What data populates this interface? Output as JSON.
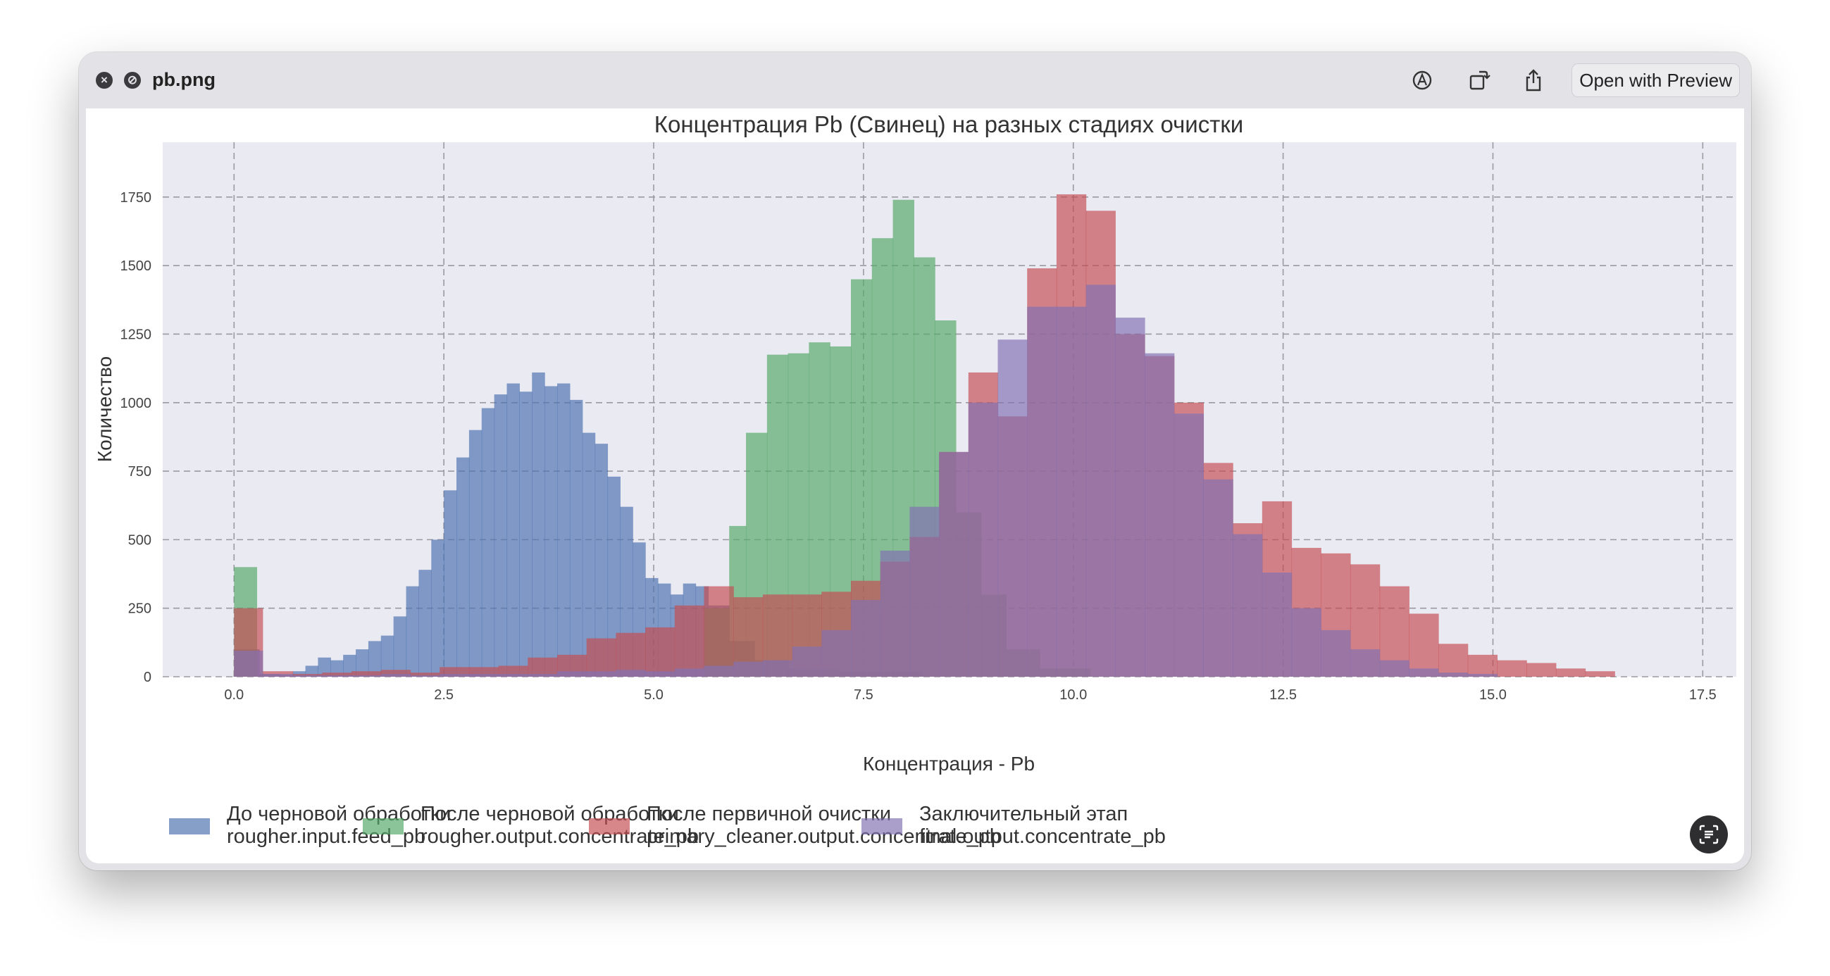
{
  "window": {
    "title": "pb.png",
    "open_button": "Open with Preview",
    "icons": [
      "close-icon",
      "stop-icon",
      "markup-icon",
      "rotate-icon",
      "share-icon",
      "live-text-icon"
    ]
  },
  "chart_data": {
    "type": "histogram",
    "title": "Концентрация Pb (Свинец) на разных стадиях очистки",
    "xlabel": "Концентрация - Pb",
    "ylabel": "Количество",
    "xlim": [
      -0.85,
      17.9
    ],
    "ylim": [
      0,
      1950
    ],
    "xticks": [
      "0.0",
      "2.5",
      "5.0",
      "7.5",
      "10.0",
      "12.5",
      "15.0",
      "17.5"
    ],
    "yticks": [
      "0",
      "250",
      "500",
      "750",
      "1000",
      "1250",
      "1500",
      "1750"
    ],
    "grid": true,
    "legend": "bottom",
    "series": [
      {
        "name": "До черновой обработки\nrougher.input.feed_pb",
        "color": "#4c72b0",
        "bins": [
          [
            0.0,
            0.3,
            100
          ],
          [
            0.3,
            0.55,
            10
          ],
          [
            0.55,
            0.7,
            5
          ],
          [
            0.7,
            0.85,
            20
          ],
          [
            0.85,
            1.0,
            40
          ],
          [
            1.0,
            1.15,
            70
          ],
          [
            1.15,
            1.3,
            60
          ],
          [
            1.3,
            1.45,
            80
          ],
          [
            1.45,
            1.6,
            100
          ],
          [
            1.6,
            1.75,
            130
          ],
          [
            1.75,
            1.9,
            150
          ],
          [
            1.9,
            2.05,
            220
          ],
          [
            2.05,
            2.2,
            330
          ],
          [
            2.2,
            2.35,
            390
          ],
          [
            2.35,
            2.5,
            500
          ],
          [
            2.5,
            2.65,
            680
          ],
          [
            2.65,
            2.8,
            800
          ],
          [
            2.8,
            2.95,
            900
          ],
          [
            2.95,
            3.1,
            980
          ],
          [
            3.1,
            3.25,
            1030
          ],
          [
            3.25,
            3.4,
            1070
          ],
          [
            3.4,
            3.55,
            1040
          ],
          [
            3.55,
            3.7,
            1110
          ],
          [
            3.7,
            3.85,
            1060
          ],
          [
            3.85,
            4.0,
            1070
          ],
          [
            4.0,
            4.15,
            1010
          ],
          [
            4.15,
            4.3,
            890
          ],
          [
            4.3,
            4.45,
            850
          ],
          [
            4.45,
            4.6,
            730
          ],
          [
            4.6,
            4.75,
            620
          ],
          [
            4.75,
            4.9,
            490
          ],
          [
            4.9,
            5.05,
            360
          ],
          [
            5.05,
            5.2,
            340
          ],
          [
            5.2,
            5.35,
            300
          ],
          [
            5.35,
            5.5,
            340
          ],
          [
            5.5,
            5.65,
            330
          ],
          [
            5.65,
            5.9,
            260
          ],
          [
            5.9,
            6.2,
            130
          ],
          [
            6.2,
            6.6,
            60
          ],
          [
            6.6,
            7.2,
            30
          ],
          [
            7.2,
            8.2,
            20
          ]
        ]
      },
      {
        "name": "После черновой обработки\nrougher.output.concentrate_pb",
        "color": "#55a868",
        "bins": [
          [
            0.0,
            0.27,
            400
          ],
          [
            0.27,
            0.6,
            0
          ],
          [
            5.6,
            5.9,
            250
          ],
          [
            5.9,
            6.1,
            550
          ],
          [
            6.1,
            6.35,
            890
          ],
          [
            6.35,
            6.6,
            1175
          ],
          [
            6.6,
            6.85,
            1180
          ],
          [
            6.85,
            7.1,
            1220
          ],
          [
            7.1,
            7.35,
            1205
          ],
          [
            7.35,
            7.6,
            1450
          ],
          [
            7.6,
            7.85,
            1600
          ],
          [
            7.85,
            8.1,
            1740
          ],
          [
            8.1,
            8.35,
            1530
          ],
          [
            8.35,
            8.6,
            1300
          ],
          [
            8.6,
            8.9,
            600
          ],
          [
            8.9,
            9.2,
            300
          ],
          [
            9.2,
            9.6,
            100
          ],
          [
            9.6,
            10.2,
            30
          ]
        ]
      },
      {
        "name": "После первичной очистки\nprimary_cleaner.output.concentrate_pb",
        "color": "#c44e52",
        "bins": [
          [
            0.0,
            0.34,
            250
          ],
          [
            0.34,
            0.7,
            20
          ],
          [
            0.7,
            1.05,
            10
          ],
          [
            1.05,
            1.4,
            15
          ],
          [
            1.4,
            1.75,
            20
          ],
          [
            1.75,
            2.1,
            25
          ],
          [
            2.1,
            2.45,
            15
          ],
          [
            2.45,
            2.8,
            35
          ],
          [
            2.8,
            3.15,
            35
          ],
          [
            3.15,
            3.5,
            40
          ],
          [
            3.5,
            3.85,
            70
          ],
          [
            3.85,
            4.2,
            80
          ],
          [
            4.2,
            4.55,
            140
          ],
          [
            4.55,
            4.9,
            160
          ],
          [
            4.9,
            5.25,
            180
          ],
          [
            5.25,
            5.6,
            260
          ],
          [
            5.6,
            5.95,
            330
          ],
          [
            5.95,
            6.3,
            290
          ],
          [
            6.3,
            6.65,
            300
          ],
          [
            6.65,
            7.0,
            300
          ],
          [
            7.0,
            7.35,
            310
          ],
          [
            7.35,
            7.7,
            350
          ],
          [
            7.7,
            8.05,
            420
          ],
          [
            8.05,
            8.4,
            510
          ],
          [
            8.4,
            8.75,
            820
          ],
          [
            8.75,
            9.1,
            1110
          ],
          [
            9.1,
            9.45,
            950
          ],
          [
            9.45,
            9.8,
            1490
          ],
          [
            9.8,
            10.15,
            1760
          ],
          [
            10.15,
            10.5,
            1700
          ],
          [
            10.5,
            10.85,
            1250
          ],
          [
            10.85,
            11.2,
            1170
          ],
          [
            11.2,
            11.55,
            1000
          ],
          [
            11.55,
            11.9,
            780
          ],
          [
            11.9,
            12.25,
            560
          ],
          [
            12.25,
            12.6,
            640
          ],
          [
            12.6,
            12.95,
            470
          ],
          [
            12.95,
            13.3,
            450
          ],
          [
            13.3,
            13.65,
            410
          ],
          [
            13.65,
            14.0,
            330
          ],
          [
            14.0,
            14.35,
            230
          ],
          [
            14.35,
            14.7,
            120
          ],
          [
            14.7,
            15.05,
            80
          ],
          [
            15.05,
            15.4,
            60
          ],
          [
            15.4,
            15.75,
            50
          ],
          [
            15.75,
            16.1,
            30
          ],
          [
            16.1,
            16.45,
            20
          ]
        ]
      },
      {
        "name": "Заключительный этап\nfinal.output.concentrate_pb",
        "color": "#8172b2",
        "bins": [
          [
            0.0,
            0.34,
            95
          ],
          [
            0.34,
            0.7,
            10
          ],
          [
            0.7,
            1.05,
            5
          ],
          [
            1.05,
            1.4,
            5
          ],
          [
            1.4,
            1.75,
            5
          ],
          [
            1.75,
            2.1,
            10
          ],
          [
            2.1,
            2.45,
            5
          ],
          [
            2.45,
            2.8,
            10
          ],
          [
            2.8,
            3.15,
            10
          ],
          [
            3.15,
            3.5,
            10
          ],
          [
            3.5,
            3.85,
            10
          ],
          [
            3.85,
            4.2,
            20
          ],
          [
            4.2,
            4.55,
            20
          ],
          [
            4.55,
            4.9,
            25
          ],
          [
            4.9,
            5.25,
            20
          ],
          [
            5.25,
            5.6,
            30
          ],
          [
            5.6,
            5.95,
            40
          ],
          [
            5.95,
            6.3,
            55
          ],
          [
            6.3,
            6.65,
            60
          ],
          [
            6.65,
            7.0,
            110
          ],
          [
            7.0,
            7.35,
            170
          ],
          [
            7.35,
            7.7,
            280
          ],
          [
            7.7,
            8.05,
            460
          ],
          [
            8.05,
            8.4,
            620
          ],
          [
            8.4,
            8.75,
            820
          ],
          [
            8.75,
            9.1,
            1000
          ],
          [
            9.1,
            9.45,
            1230
          ],
          [
            9.45,
            9.8,
            1350
          ],
          [
            9.8,
            10.15,
            1350
          ],
          [
            10.15,
            10.5,
            1430
          ],
          [
            10.5,
            10.85,
            1310
          ],
          [
            10.85,
            11.2,
            1180
          ],
          [
            11.2,
            11.55,
            960
          ],
          [
            11.55,
            11.9,
            720
          ],
          [
            11.9,
            12.25,
            520
          ],
          [
            12.25,
            12.6,
            380
          ],
          [
            12.6,
            12.95,
            250
          ],
          [
            12.95,
            13.3,
            170
          ],
          [
            13.3,
            13.65,
            100
          ],
          [
            13.65,
            14.0,
            60
          ],
          [
            14.0,
            14.35,
            30
          ],
          [
            14.35,
            14.7,
            15
          ],
          [
            14.7,
            15.05,
            10
          ]
        ]
      }
    ]
  }
}
